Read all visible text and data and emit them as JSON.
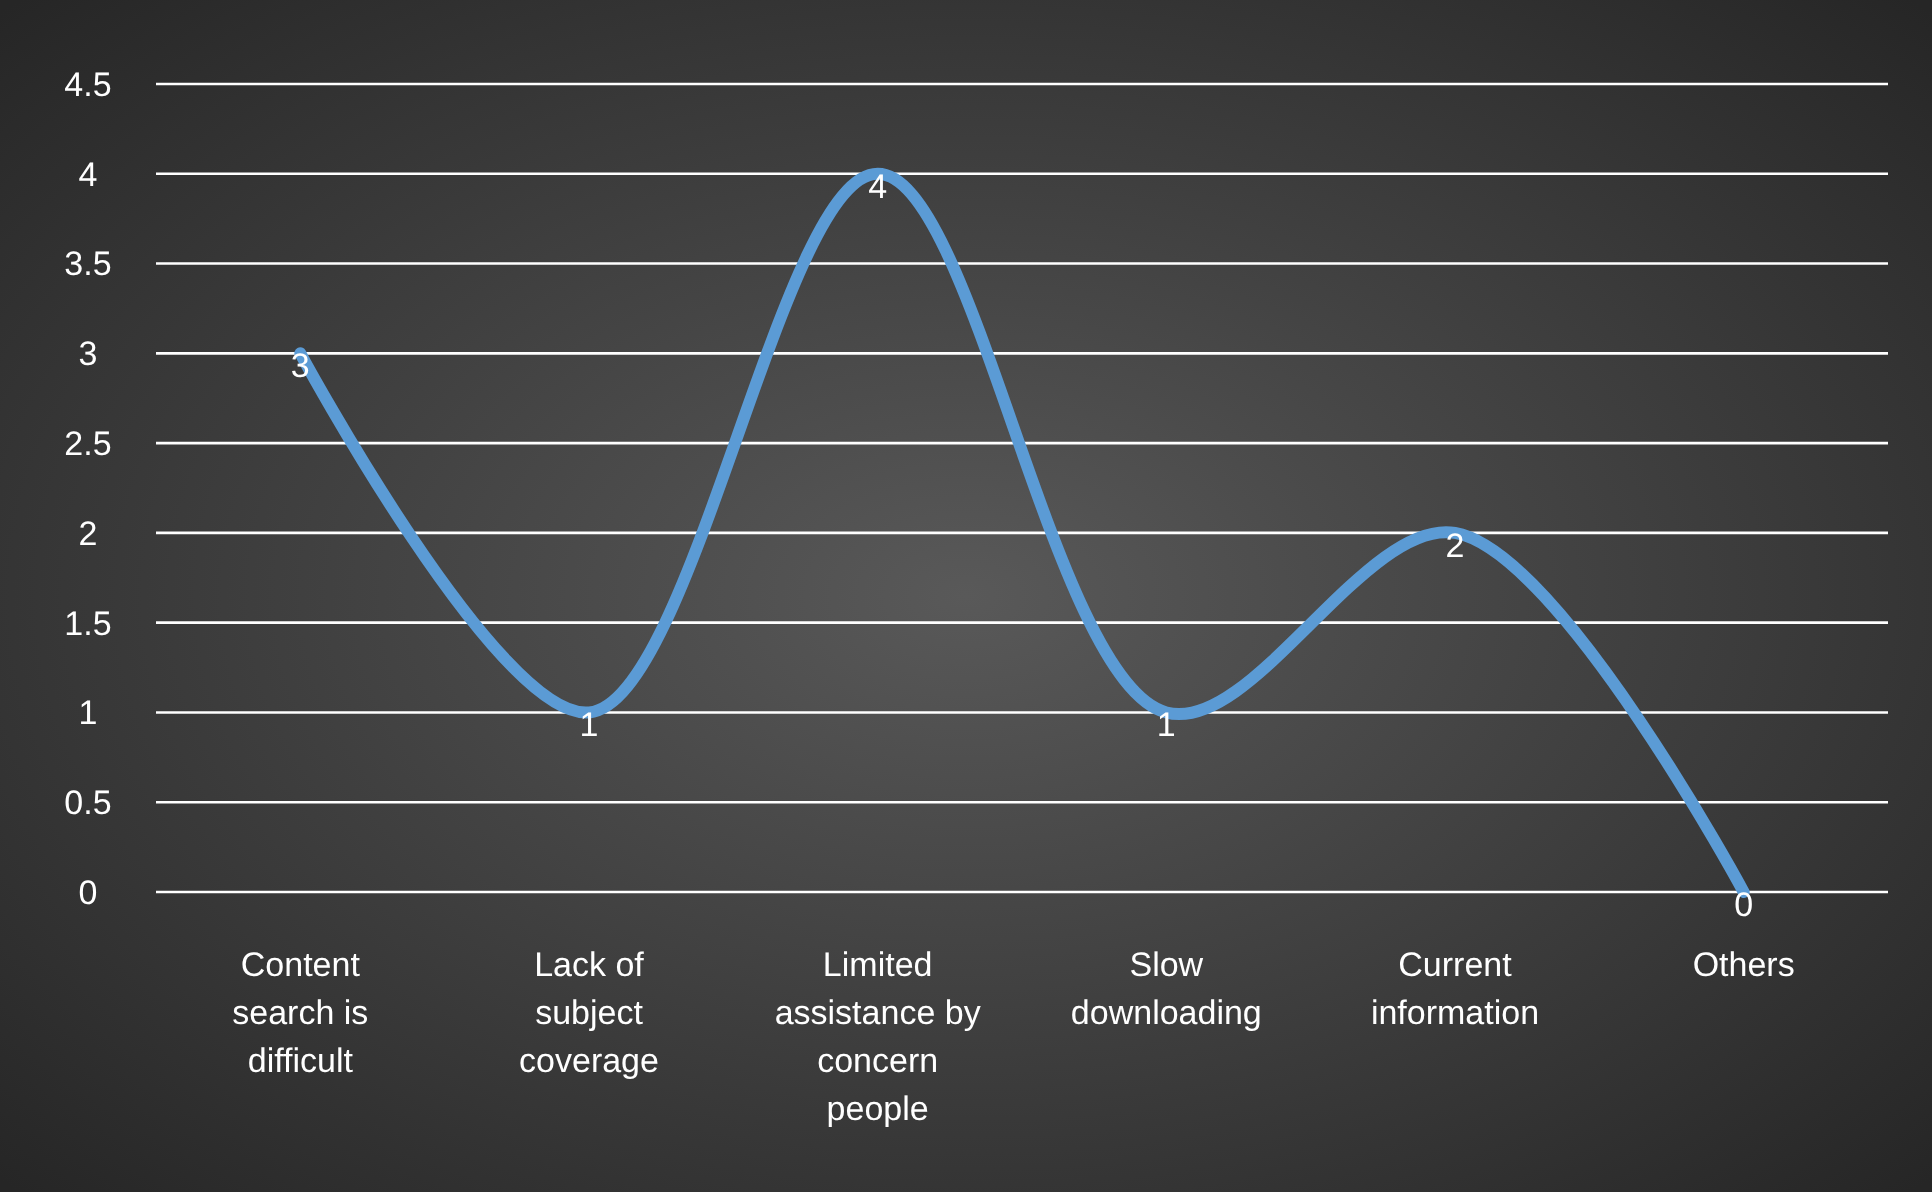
{
  "chart_data": {
    "type": "line",
    "categories": [
      "Content search is difficult",
      "Lack of subject coverage",
      "Limited assistance by concern people",
      "Slow downloading",
      "Current information",
      "Others"
    ],
    "series": [
      {
        "color": "#5b9bd5",
        "values": [
          3,
          1,
          4,
          1,
          2,
          0
        ]
      }
    ],
    "ylim": [
      0,
      4.5
    ],
    "yticks": [
      0,
      0.5,
      1,
      1.5,
      2,
      2.5,
      3,
      3.5,
      4,
      4.5
    ],
    "grid": "y",
    "data_labels": true,
    "marker": "none"
  }
}
